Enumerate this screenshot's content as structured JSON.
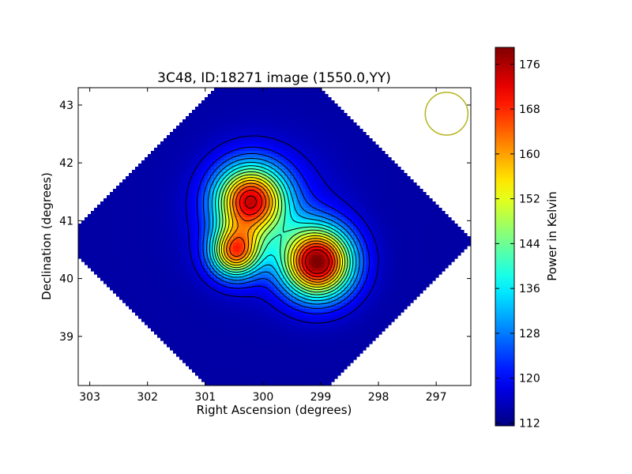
{
  "chart_data": {
    "type": "heatmap",
    "title": "3C48, ID:18271 image (1550.0,YY)",
    "xlabel": "Right Ascension (degrees)",
    "ylabel": "Declination (degrees)",
    "xlim": [
      303.2,
      296.4
    ],
    "ylim": [
      38.15,
      43.3
    ],
    "x_ticks": [
      303,
      302,
      301,
      300,
      299,
      298,
      297
    ],
    "y_ticks": [
      39,
      40,
      41,
      42,
      43
    ],
    "colorbar": {
      "label": "Power in Kelvin",
      "min": 111.5,
      "max": 179,
      "ticks": [
        112,
        120,
        128,
        136,
        144,
        152,
        160,
        168,
        176
      ],
      "colormap": "jet"
    },
    "background_level": 114,
    "sources": [
      {
        "ra": 299.05,
        "dec": 40.28,
        "peak": 178,
        "sigma": 0.42
      },
      {
        "ra": 300.22,
        "dec": 41.35,
        "peak": 167,
        "sigma": 0.42
      },
      {
        "ra": 300.48,
        "dec": 40.45,
        "peak": 159,
        "sigma": 0.3
      },
      {
        "ra": 299.95,
        "dec": 41.1,
        "peak": 122,
        "sigma": 0.75
      }
    ],
    "contour_levels": [
      117,
      121,
      125,
      129,
      133,
      137,
      141,
      145,
      149,
      153,
      157,
      161,
      165,
      169,
      173
    ],
    "beam": {
      "ra": 296.82,
      "dec": 42.85,
      "radius_deg": 0.37,
      "color": "#b5b520"
    },
    "grid": false
  }
}
